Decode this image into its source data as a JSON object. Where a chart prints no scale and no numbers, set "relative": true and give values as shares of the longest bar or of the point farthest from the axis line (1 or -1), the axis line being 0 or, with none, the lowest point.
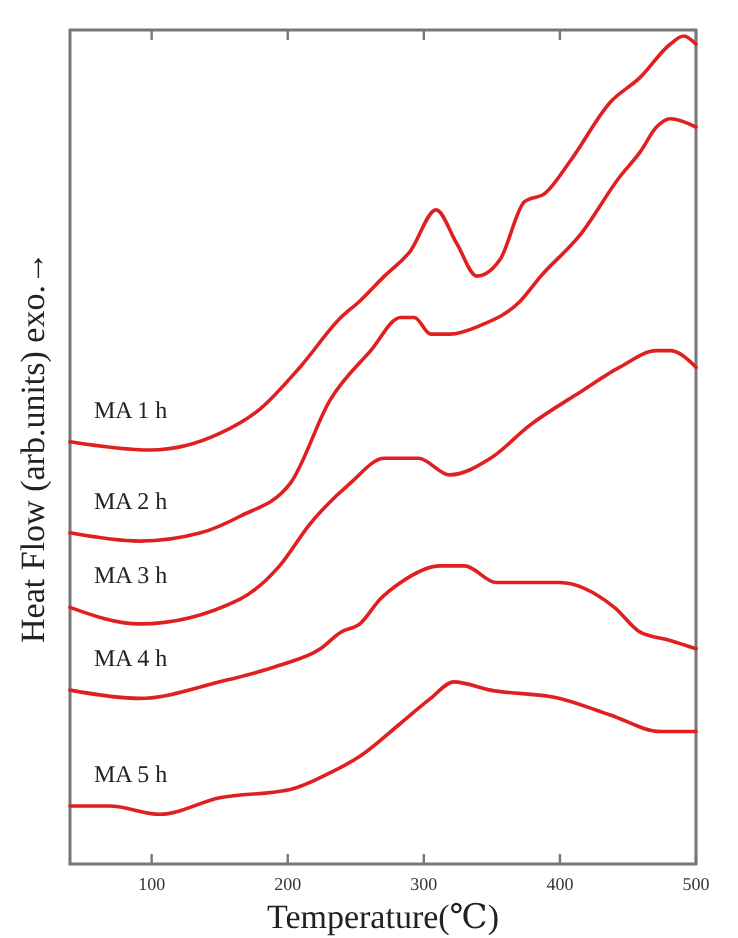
{
  "chart_data": {
    "type": "line",
    "relative": true,
    "xlabel": "Temperature(℃)",
    "ylabel": "Heat Flow (arb.units) exo.→",
    "xlim": [
      40,
      500
    ],
    "xticks": [
      100,
      200,
      300,
      400,
      500
    ],
    "grid": false,
    "legend": false,
    "marker": "none",
    "line_style": "solid",
    "series": [
      {
        "name": "MA 1 h",
        "color": "#e02020",
        "x": [
          40,
          99,
          150,
          180,
          209,
          239,
          253,
          271,
          290,
          309,
          324,
          339,
          356,
          374,
          389,
          408,
          437,
          459,
          481,
          491,
          500
        ],
        "values": [
          0.51,
          0.5,
          0.52,
          0.55,
          0.6,
          0.66,
          0.68,
          0.71,
          0.74,
          0.79,
          0.75,
          0.71,
          0.73,
          0.8,
          0.81,
          0.85,
          0.92,
          0.95,
          0.99,
          1,
          0.99
        ]
      },
      {
        "name": "MA 2 h",
        "color": "#e02020",
        "x": [
          40,
          91,
          136,
          165,
          202,
          231,
          261,
          283,
          293,
          305,
          319,
          341,
          371,
          386,
          415,
          444,
          459,
          471,
          481,
          500
        ],
        "values": [
          0.4,
          0.39,
          0.4,
          0.42,
          0.46,
          0.56,
          0.62,
          0.66,
          0.66,
          0.64,
          0.64,
          0.65,
          0.68,
          0.71,
          0.76,
          0.83,
          0.86,
          0.89,
          0.9,
          0.89
        ]
      },
      {
        "name": "MA 3 h",
        "color": "#e02020",
        "x": [
          40,
          91,
          165,
          194,
          216,
          246,
          271,
          296,
          319,
          349,
          378,
          415,
          444,
          471,
          481,
          500
        ],
        "values": [
          0.31,
          0.29,
          0.32,
          0.36,
          0.41,
          0.46,
          0.49,
          0.49,
          0.47,
          0.49,
          0.53,
          0.57,
          0.6,
          0.62,
          0.62,
          0.6
        ]
      },
      {
        "name": "MA 4 h",
        "color": "#e02020",
        "x": [
          40,
          91,
          150,
          194,
          224,
          239,
          253,
          268,
          283,
          312,
          330,
          353,
          400,
          440,
          459,
          481,
          500
        ],
        "values": [
          0.21,
          0.2,
          0.22,
          0.24,
          0.26,
          0.28,
          0.29,
          0.32,
          0.34,
          0.36,
          0.36,
          0.34,
          0.34,
          0.31,
          0.28,
          0.27,
          0.26
        ]
      },
      {
        "name": "MA 5 h",
        "color": "#e02020",
        "x": [
          40,
          69,
          106,
          150,
          202,
          231,
          253,
          283,
          305,
          322,
          349,
          400,
          437,
          474,
          500
        ],
        "values": [
          0.07,
          0.07,
          0.06,
          0.08,
          0.09,
          0.11,
          0.13,
          0.17,
          0.2,
          0.22,
          0.21,
          0.2,
          0.18,
          0.16,
          0.16
        ]
      }
    ]
  }
}
